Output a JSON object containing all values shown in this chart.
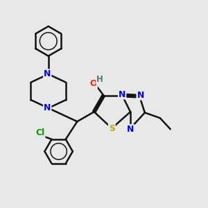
{
  "background_color": "#e8e8e8",
  "atom_colors": {
    "N": "#0000ee",
    "O": "#ff2200",
    "S": "#bbaa00",
    "Cl": "#009900",
    "C": "#000000",
    "H": "#557777"
  },
  "bond_color": "#111111",
  "bond_width": 1.8,
  "figsize": [
    3.0,
    3.0
  ],
  "dpi": 100
}
